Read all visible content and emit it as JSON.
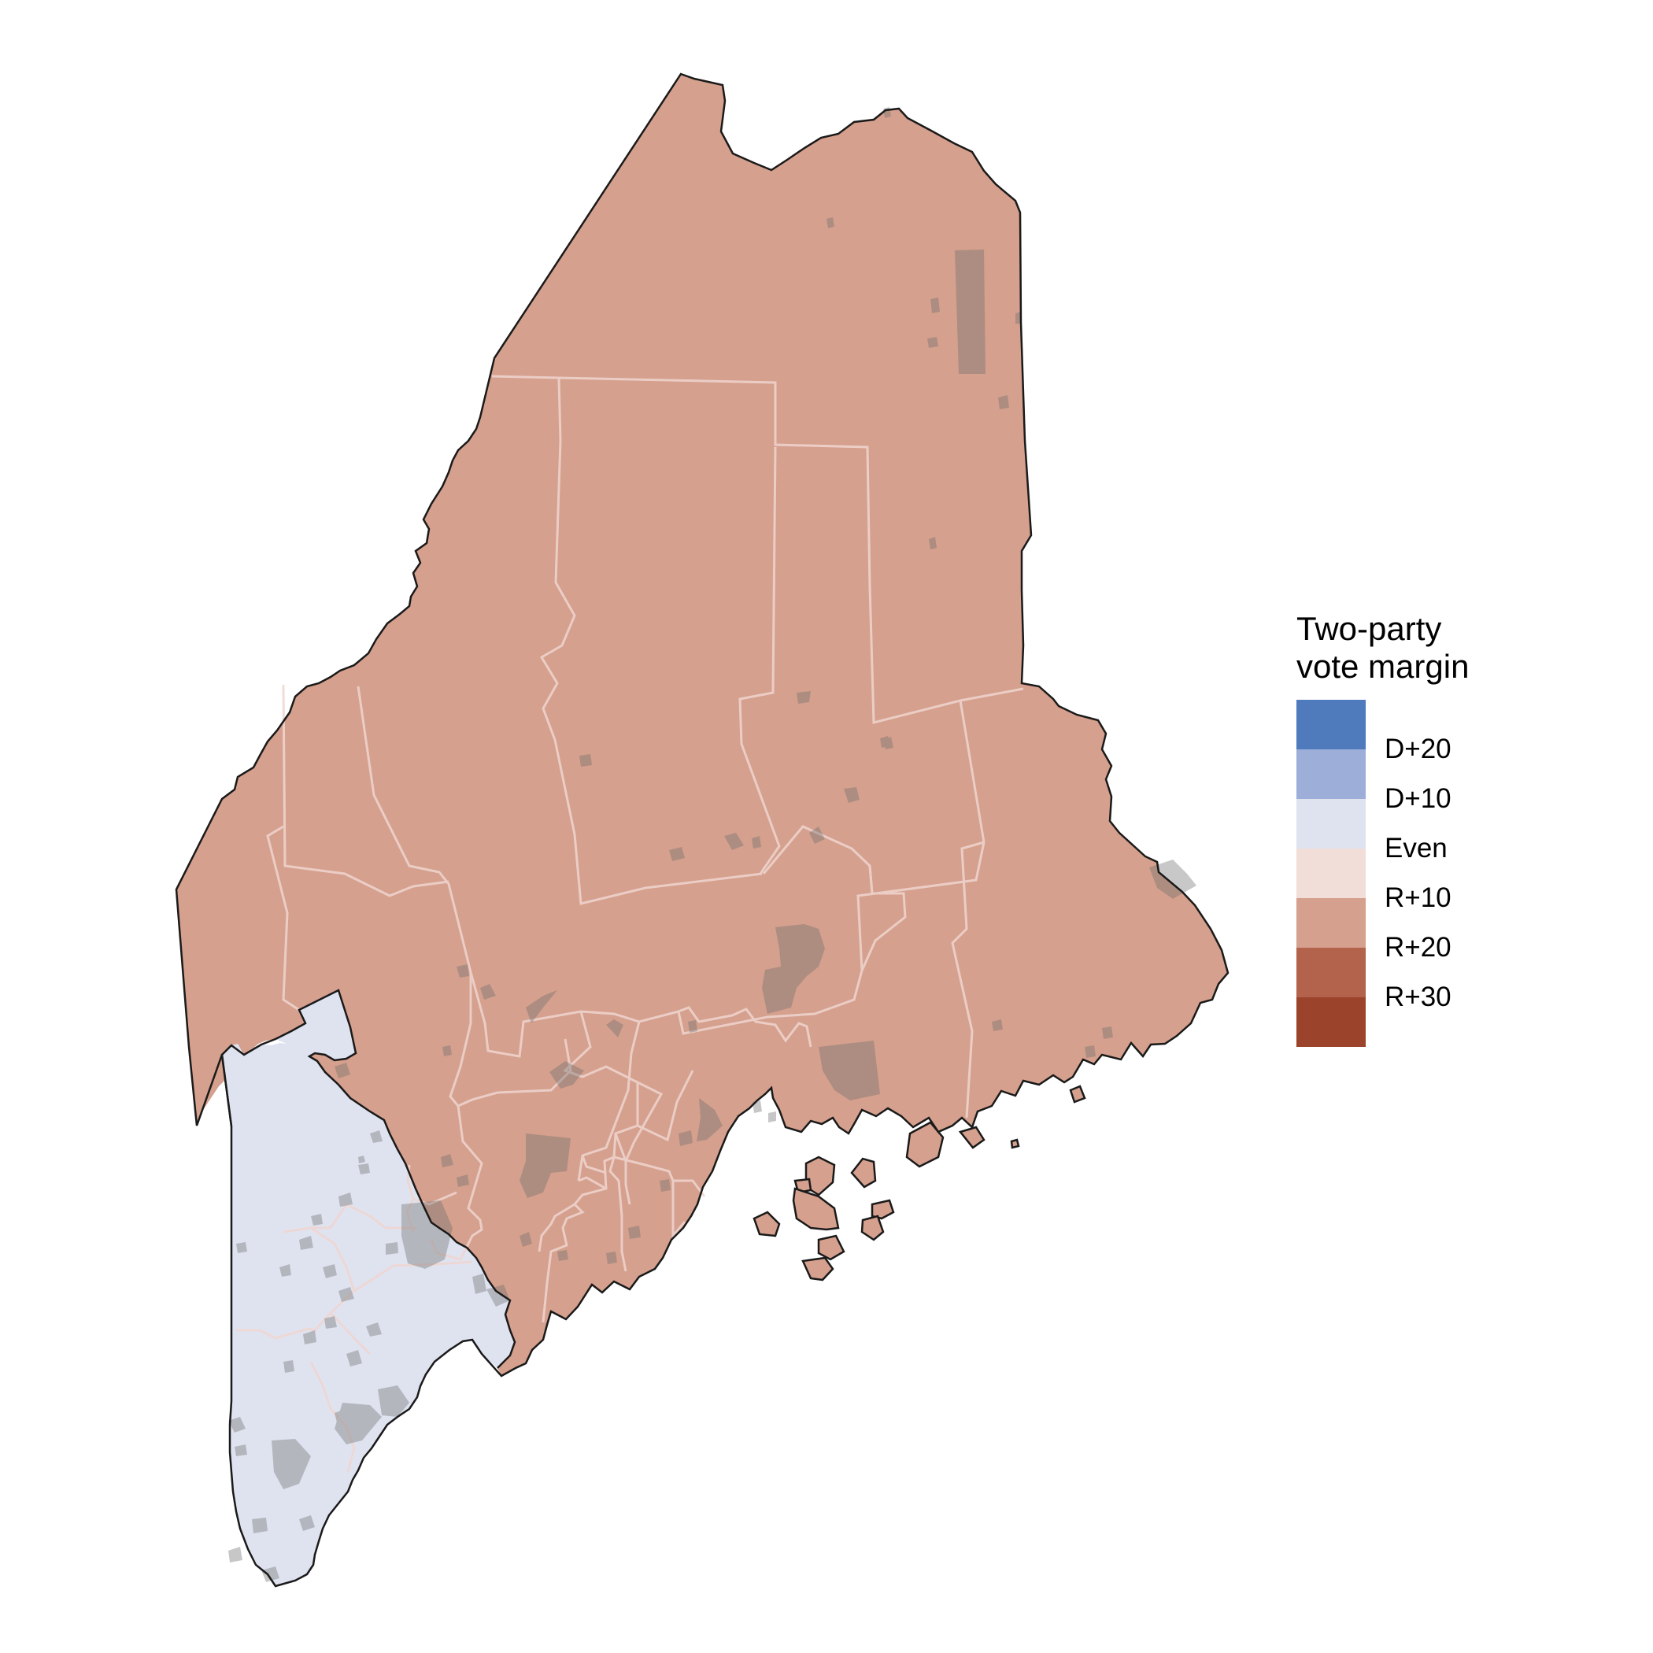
{
  "map": {
    "state": "Maine",
    "districts": [
      {
        "name": "District 1",
        "category": "Even",
        "fill": "#dfe3f0"
      },
      {
        "name": "District 2",
        "category": "R+10",
        "fill": "#d5a08d"
      }
    ],
    "urban_overlay_color": "#6f6f6f",
    "county_line_color": "#f0d6d1",
    "outline_color": "#1a1a1a"
  },
  "legend": {
    "title_line1": "Two-party",
    "title_line2": "vote margin",
    "bins": [
      {
        "color": "#4f7bbd"
      },
      {
        "color": "#9dafd9"
      },
      {
        "color": "#dfe3f0"
      },
      {
        "color": "#f2ded9"
      },
      {
        "color": "#d5a08d"
      },
      {
        "color": "#b3624c"
      },
      {
        "color": "#9b432b"
      }
    ],
    "labels": [
      "D+20",
      "D+10",
      "Even",
      "R+10",
      "R+20",
      "R+30"
    ]
  }
}
